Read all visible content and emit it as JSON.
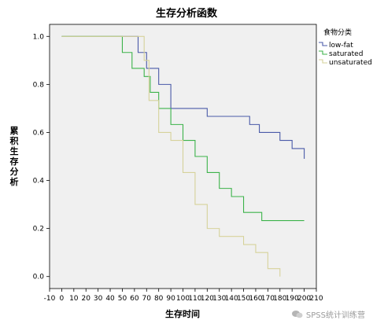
{
  "chart_data": {
    "type": "line",
    "step": true,
    "title": "生存分析函数",
    "xlabel": "生存时间",
    "ylabel": "累积生存分析",
    "xlim": [
      -10,
      210
    ],
    "ylim": [
      -0.05,
      1.05
    ],
    "xticks": [
      -10,
      0,
      10,
      20,
      30,
      40,
      50,
      60,
      70,
      80,
      90,
      100,
      110,
      120,
      130,
      140,
      150,
      160,
      170,
      180,
      190,
      200,
      210
    ],
    "yticks": [
      0.0,
      0.2,
      0.4,
      0.6,
      0.8,
      1.0
    ],
    "ytick_labels": [
      "0.0",
      "0.2",
      "0.4",
      "0.6",
      "0.8",
      "1.0"
    ],
    "grid": false,
    "background": "#f0f0f0",
    "legend": {
      "title": "食物分类",
      "position": "top-right"
    },
    "series": [
      {
        "name": "low-fat",
        "color": "#4a5aa8",
        "x": [
          0,
          63,
          70,
          80,
          90,
          120,
          155,
          163,
          180,
          190,
          200
        ],
        "y": [
          1.0,
          0.933,
          0.867,
          0.8,
          0.7,
          0.667,
          0.633,
          0.6,
          0.567,
          0.533,
          0.49
        ]
      },
      {
        "name": "saturated",
        "color": "#3cb34a",
        "x": [
          0,
          50,
          58,
          68,
          73,
          80,
          90,
          100,
          110,
          120,
          130,
          140,
          150,
          165,
          180,
          200
        ],
        "y": [
          1.0,
          0.933,
          0.867,
          0.833,
          0.767,
          0.7,
          0.633,
          0.567,
          0.5,
          0.433,
          0.367,
          0.333,
          0.267,
          0.233,
          0.233,
          0.233
        ]
      },
      {
        "name": "unsaturated",
        "color": "#d6d29a",
        "x": [
          0,
          68,
          72,
          80,
          90,
          100,
          110,
          120,
          130,
          150,
          160,
          170,
          180
        ],
        "y": [
          1.0,
          0.9,
          0.733,
          0.6,
          0.567,
          0.433,
          0.3,
          0.2,
          0.167,
          0.133,
          0.1,
          0.033,
          0.0
        ]
      }
    ]
  },
  "watermark": {
    "text": "SPSS统计训练营",
    "icon": "chat-bubble-icon"
  }
}
